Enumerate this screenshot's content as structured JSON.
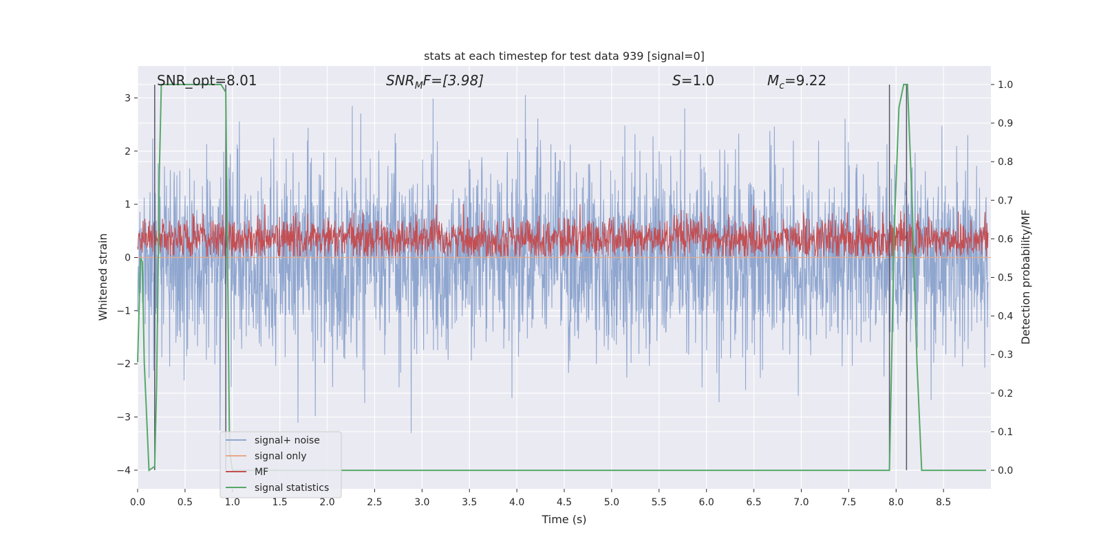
{
  "chart_data": {
    "type": "line",
    "title": "stats at each timestep for test data 939 [signal=0]",
    "xlabel": "Time (s)",
    "ylabel_left": "Whitened strain",
    "ylabel_right": "Detection probability/MF",
    "xlim": [
      0.0,
      9.0
    ],
    "ylim_left": [
      -4.35,
      3.6
    ],
    "ylim_right": [
      -0.048,
      1.048
    ],
    "xticks": [
      "0.0",
      "0.5",
      "1.0",
      "1.5",
      "2.0",
      "2.5",
      "3.0",
      "3.5",
      "4.0",
      "4.5",
      "5.0",
      "5.5",
      "6.0",
      "6.5",
      "7.0",
      "7.5",
      "8.0",
      "8.5"
    ],
    "yticks_left": [
      "3",
      "2",
      "1",
      "0",
      "−1",
      "−2",
      "−3",
      "−4"
    ],
    "yticks_right": [
      "1.0",
      "0.9",
      "0.8",
      "0.7",
      "0.6",
      "0.5",
      "0.4",
      "0.3",
      "0.2",
      "0.1",
      "0.0"
    ],
    "grid": true,
    "legend_position": "lower-left",
    "annotations": {
      "snr_opt": "SNR_opt=8.01",
      "snr_mf_main": "SNR",
      "snr_mf_sub": "M",
      "snr_mf_rest": "F=[3.98]",
      "s_main": "S",
      "s_rest": "=1.0",
      "mc_main": "M",
      "mc_sub": "c",
      "mc_rest": "=9.22"
    },
    "series": [
      {
        "name": "signal+ noise",
        "axis": "left",
        "color": "#8fa6cf",
        "description_range": [
          -3.3,
          3.3
        ],
        "envelope_std": 0.9
      },
      {
        "name": "signal only",
        "axis": "left",
        "color": "#e8a888",
        "x": [
          0.0,
          9.0
        ],
        "y": [
          0.0,
          0.0
        ]
      },
      {
        "name": "MF",
        "axis": "right",
        "color": "#c44e52",
        "baseline": 0.6,
        "spread": 0.05
      },
      {
        "name": "signal statistics",
        "axis": "right",
        "color": "#55a868",
        "x": [
          0.0,
          0.03,
          0.05,
          0.07,
          0.12,
          0.18,
          0.2,
          0.23,
          0.25,
          0.88,
          0.93,
          0.97,
          1.0,
          7.93,
          7.98,
          8.03,
          8.08,
          8.12,
          8.17,
          8.22,
          8.27,
          8.95
        ],
        "y": [
          0.28,
          0.55,
          0.54,
          0.28,
          0.0,
          0.01,
          0.22,
          0.78,
          1.0,
          1.0,
          0.98,
          0.05,
          0.0,
          0.0,
          0.62,
          0.94,
          1.0,
          1.0,
          0.69,
          0.28,
          0.0,
          0.0
        ]
      }
    ],
    "vertical_markers": [
      {
        "x": 0.18,
        "ymin": -4.0,
        "ymax": 3.25
      },
      {
        "x": 0.93,
        "ymin": -4.0,
        "ymax": 3.25
      },
      {
        "x": 7.93,
        "ymin": -4.0,
        "ymax": 3.25
      },
      {
        "x": 8.11,
        "ymin": -4.0,
        "ymax": 3.25
      }
    ]
  }
}
